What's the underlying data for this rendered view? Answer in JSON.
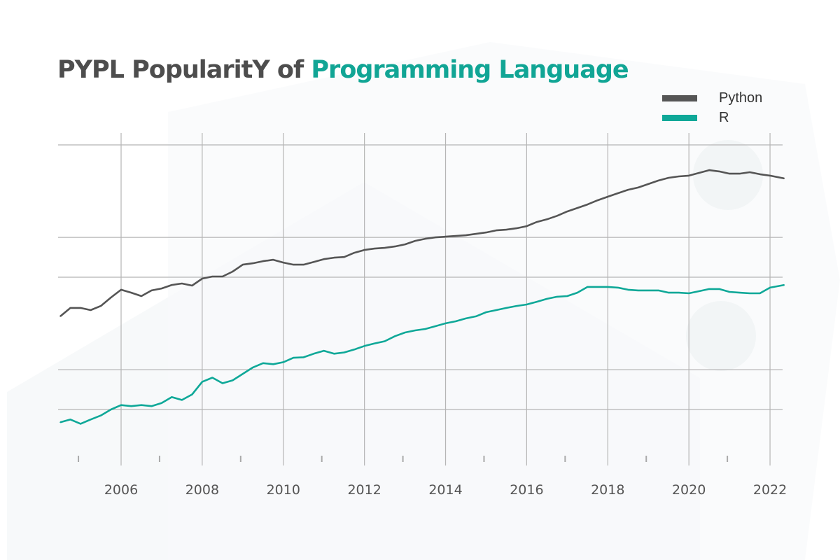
{
  "chart_data": {
    "type": "line",
    "title": "PYPL PopularitY of",
    "title_highlight": "Programming Language",
    "xlabel": "",
    "ylabel": "",
    "y_scale": "log",
    "ylim": [
      0.22,
      50
    ],
    "xlim": [
      2004.4,
      2022.4
    ],
    "y_gridlines": [
      0.5,
      1,
      5,
      10,
      50
    ],
    "x_ticks": [
      2006,
      2008,
      2010,
      2012,
      2014,
      2016,
      2018,
      2020,
      2022
    ],
    "x_tick_labels": [
      "2006",
      "2008",
      "2010",
      "2012",
      "2014",
      "2016",
      "2018",
      "2020",
      "2022"
    ],
    "x_minor_ticks": [
      2005,
      2007,
      2009,
      2011,
      2013,
      2015,
      2017,
      2019,
      2021
    ],
    "grid": true,
    "legend_position": "top-right",
    "x": [
      2004.5,
      2004.75,
      2005,
      2005.25,
      2005.5,
      2005.75,
      2006,
      2006.25,
      2006.5,
      2006.75,
      2007,
      2007.25,
      2007.5,
      2007.75,
      2008,
      2008.25,
      2008.5,
      2008.75,
      2009,
      2009.25,
      2009.5,
      2009.75,
      2010,
      2010.25,
      2010.5,
      2010.75,
      2011,
      2011.25,
      2011.5,
      2011.75,
      2012,
      2012.25,
      2012.5,
      2012.75,
      2013,
      2013.25,
      2013.5,
      2013.75,
      2014,
      2014.25,
      2014.5,
      2014.75,
      2015,
      2015.25,
      2015.5,
      2015.75,
      2016,
      2016.25,
      2016.5,
      2016.75,
      2017,
      2017.25,
      2017.5,
      2017.75,
      2018,
      2018.25,
      2018.5,
      2018.75,
      2019,
      2019.25,
      2019.5,
      2019.75,
      2020,
      2020.25,
      2020.5,
      2020.75,
      2021,
      2021.25,
      2021.5,
      2021.75,
      2022,
      2022.35
    ],
    "series": [
      {
        "name": "Python",
        "color": "#555555",
        "values": [
          2.53,
          2.93,
          2.93,
          2.82,
          3.03,
          3.51,
          4.02,
          3.82,
          3.6,
          3.97,
          4.11,
          4.37,
          4.48,
          4.32,
          4.88,
          5.06,
          5.06,
          5.51,
          6.22,
          6.37,
          6.61,
          6.77,
          6.45,
          6.22,
          6.22,
          6.52,
          6.85,
          7.02,
          7.1,
          7.65,
          8.03,
          8.23,
          8.33,
          8.54,
          8.85,
          9.41,
          9.76,
          10.0,
          10.12,
          10.25,
          10.37,
          10.63,
          10.89,
          11.3,
          11.43,
          11.71,
          12.15,
          13.07,
          13.7,
          14.56,
          15.69,
          16.68,
          17.73,
          19.07,
          20.3,
          21.57,
          22.9,
          23.8,
          25.3,
          26.9,
          28.2,
          28.9,
          29.3,
          30.7,
          32.2,
          31.5,
          30.3,
          30.3,
          31.1,
          30.0,
          29.3,
          27.9
        ]
      },
      {
        "name": "R",
        "color": "#0fa898",
        "values": [
          0.4,
          0.42,
          0.39,
          0.42,
          0.45,
          0.5,
          0.54,
          0.53,
          0.54,
          0.53,
          0.56,
          0.62,
          0.59,
          0.65,
          0.81,
          0.87,
          0.79,
          0.83,
          0.93,
          1.04,
          1.12,
          1.1,
          1.14,
          1.23,
          1.24,
          1.32,
          1.39,
          1.32,
          1.35,
          1.42,
          1.51,
          1.58,
          1.64,
          1.79,
          1.91,
          1.98,
          2.03,
          2.13,
          2.24,
          2.32,
          2.44,
          2.53,
          2.72,
          2.82,
          2.93,
          3.03,
          3.11,
          3.26,
          3.43,
          3.56,
          3.6,
          3.82,
          4.22,
          4.22,
          4.22,
          4.17,
          4.02,
          3.97,
          3.97,
          3.97,
          3.82,
          3.82,
          3.78,
          3.92,
          4.07,
          4.07,
          3.87,
          3.82,
          3.78,
          3.78,
          4.17,
          4.37
        ]
      }
    ]
  },
  "colors": {
    "title": "#4d4d4d",
    "accent": "#11a595",
    "grid": "#b5b5b5"
  }
}
